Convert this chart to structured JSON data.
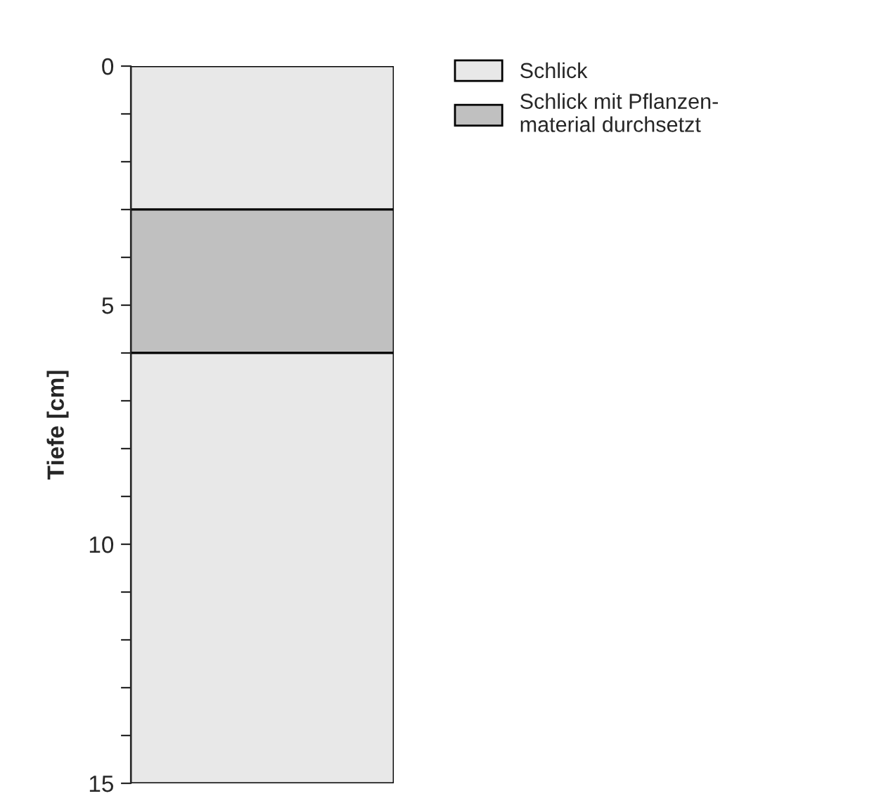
{
  "chart_data": {
    "type": "bar",
    "stacked": true,
    "categories": [
      null
    ],
    "ylabel": "Tiefe [cm]",
    "ylim": [
      15,
      0
    ],
    "yticks": [
      0,
      {
        "value": 1,
        "label": null
      },
      {
        "value": 2,
        "label": null
      },
      {
        "value": 3,
        "label": null
      },
      {
        "value": 4,
        "label": null
      },
      5,
      {
        "value": 6,
        "label": null
      },
      {
        "value": 7,
        "label": null
      },
      {
        "value": 8,
        "label": null
      },
      {
        "value": 9,
        "label": null
      },
      10,
      {
        "value": 11,
        "label": null
      },
      {
        "value": 12,
        "label": null
      },
      {
        "value": 13,
        "label": null
      },
      {
        "value": 14,
        "label": null
      },
      15
    ],
    "series": [
      {
        "name": "Schlick",
        "color": "#e8e8e8",
        "values": [
          3
        ]
      },
      {
        "name": "Schlick mit Pflanzen-\nmaterial durchsetzt",
        "color": "#c0c0c0",
        "values": [
          3
        ]
      },
      {
        "color": "#e8e8e8",
        "values": [
          9
        ]
      }
    ],
    "legend": "top right",
    "tick_labels": "y"
  }
}
